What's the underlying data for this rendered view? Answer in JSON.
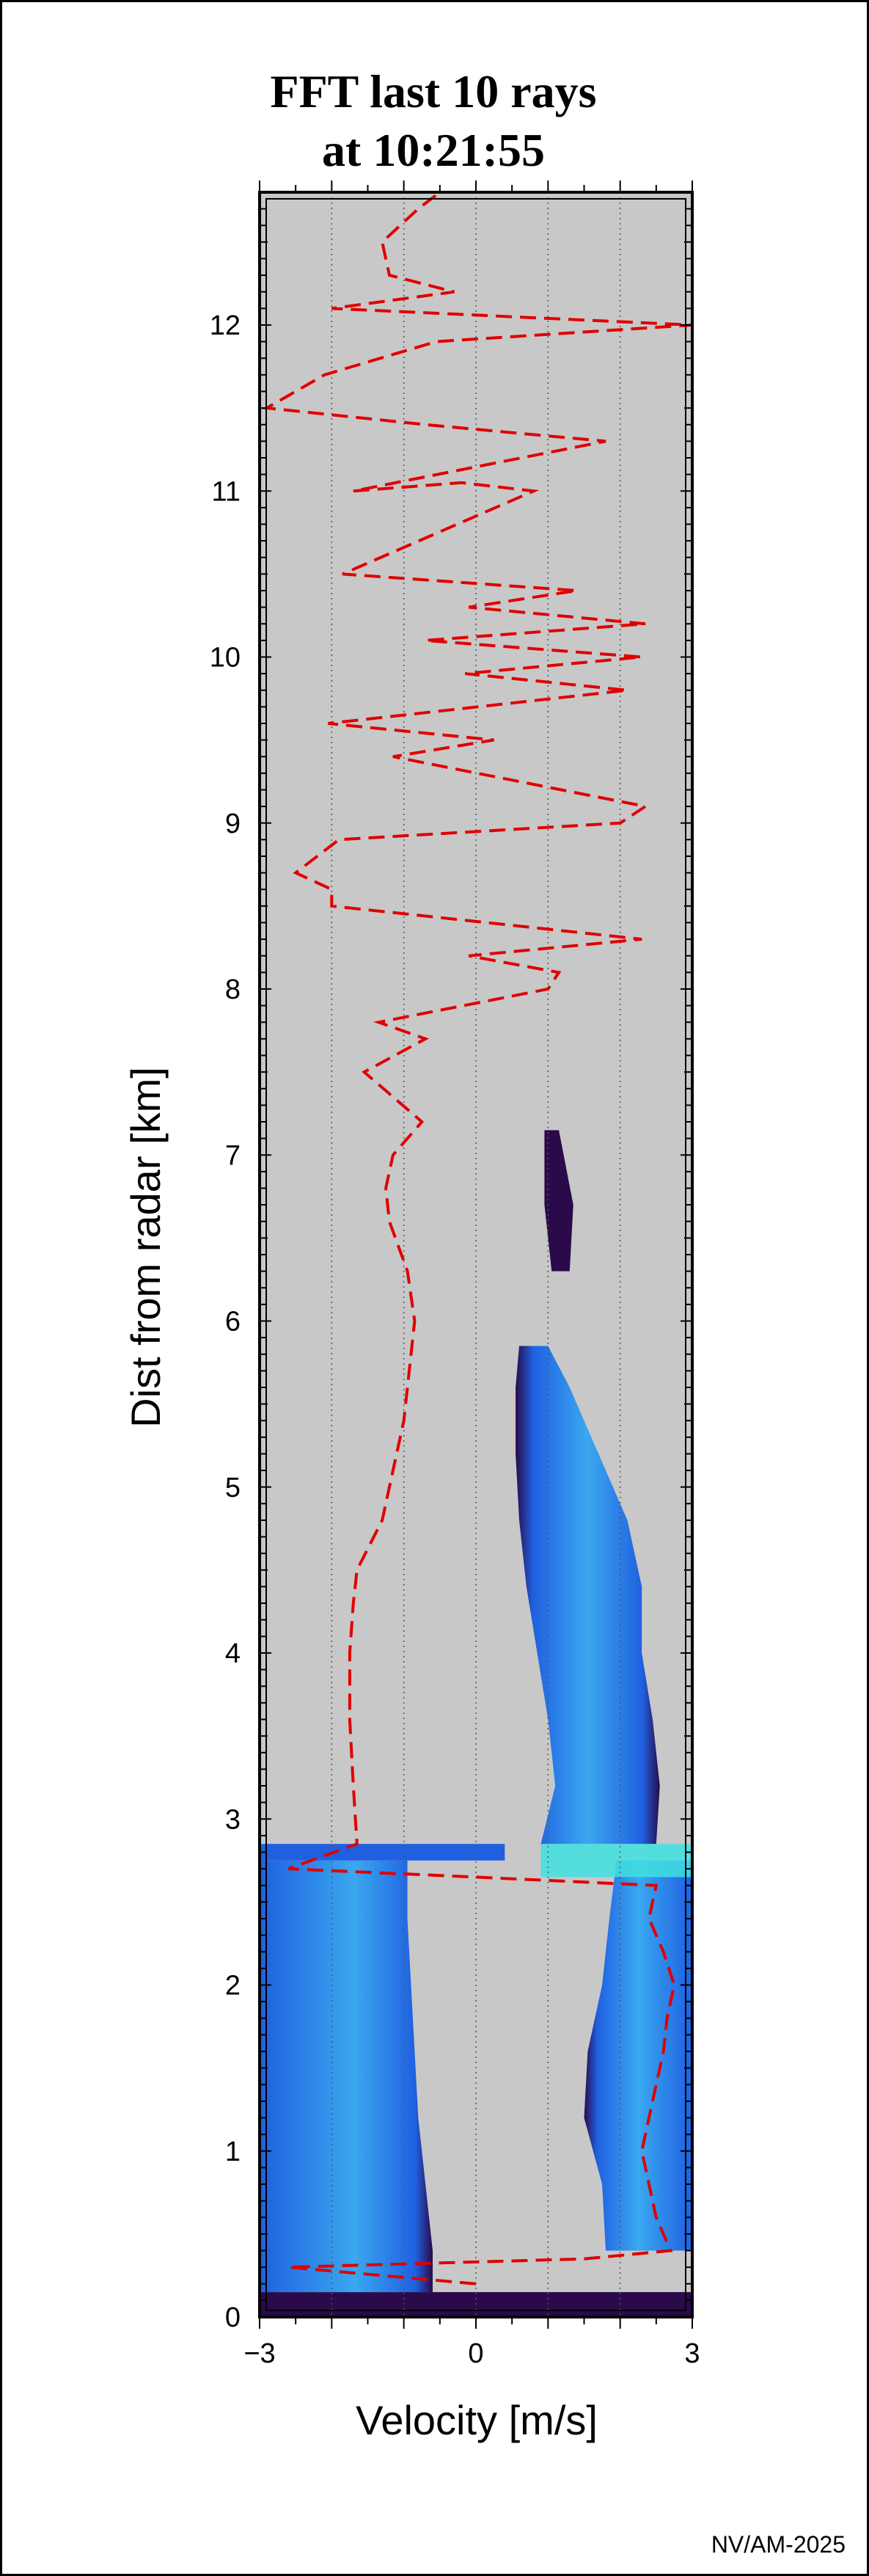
{
  "chart_data": {
    "type": "heatmap",
    "title_lines": [
      "FFT last 10 rays",
      "at 10:21:55"
    ],
    "xlabel": "Velocity [m/s]",
    "ylabel": "Dist from radar [km]",
    "xlim": [
      -3,
      3
    ],
    "ylim": [
      0,
      12.8
    ],
    "xticks": [
      -3,
      0,
      3
    ],
    "xtick_labels": [
      "−3",
      "0",
      "3"
    ],
    "yticks": [
      0,
      1,
      2,
      3,
      4,
      5,
      6,
      7,
      8,
      9,
      10,
      11,
      12
    ],
    "vertical_gridlines": [
      -2,
      -1,
      0,
      1,
      2
    ],
    "colors": {
      "background": "#c8c8c8",
      "spectrum_dark": "#2a0a4a",
      "spectrum_mid": "#2060e0",
      "spectrum_light": "#3aa8f0",
      "spectrum_peak": "#40e0e0",
      "mean_velocity": "#e00000"
    },
    "spectrum_bands": [
      {
        "name": "clutter-near-radar",
        "d0": 0.0,
        "d1": 0.15,
        "v_left": -3.0,
        "v_right": 3.0
      },
      {
        "name": "lower-layer-negative",
        "d0": 0.15,
        "d1": 2.75,
        "profile": [
          [
            0.15,
            -0.6
          ],
          [
            0.4,
            -0.6
          ],
          [
            0.8,
            -0.7
          ],
          [
            1.2,
            -0.8
          ],
          [
            1.6,
            -0.85
          ],
          [
            2.0,
            -0.9
          ],
          [
            2.4,
            -0.95
          ],
          [
            2.75,
            -0.95
          ]
        ],
        "edge": "right"
      },
      {
        "name": "lower-layer-positive",
        "d0": 0.4,
        "d1": 2.75,
        "profile": [
          [
            0.4,
            1.8
          ],
          [
            0.8,
            1.75
          ],
          [
            1.2,
            1.5
          ],
          [
            1.6,
            1.55
          ],
          [
            2.0,
            1.75
          ],
          [
            2.4,
            1.85
          ],
          [
            2.75,
            1.95
          ]
        ],
        "edge": "left"
      },
      {
        "name": "band-at-2.8km",
        "d0": 2.75,
        "d1": 2.85,
        "v_left": -3.0,
        "v_right": 0.4
      },
      {
        "name": "upper-echo",
        "d0": 2.85,
        "d1": 5.85,
        "profile": [
          [
            2.85,
            0.9,
            2.5
          ],
          [
            3.2,
            1.1,
            2.55
          ],
          [
            3.6,
            1.0,
            2.45
          ],
          [
            4.0,
            0.85,
            2.3
          ],
          [
            4.4,
            0.7,
            2.3
          ],
          [
            4.8,
            0.6,
            2.1
          ],
          [
            5.2,
            0.55,
            1.7
          ],
          [
            5.6,
            0.55,
            1.3
          ],
          [
            5.85,
            0.6,
            1.0
          ]
        ]
      },
      {
        "name": "upper-echo-wisps",
        "d0": 6.3,
        "d1": 7.15,
        "profile": [
          [
            6.3,
            1.05,
            1.3
          ],
          [
            6.7,
            0.95,
            1.35
          ],
          [
            7.15,
            0.95,
            1.15
          ]
        ]
      }
    ],
    "mean_velocity_curve": [
      [
        0.2,
        0.0
      ],
      [
        0.3,
        -2.6
      ],
      [
        0.35,
        1.5
      ],
      [
        0.4,
        2.7
      ],
      [
        0.6,
        2.5
      ],
      [
        0.8,
        2.4
      ],
      [
        1.0,
        2.3
      ],
      [
        1.2,
        2.4
      ],
      [
        1.4,
        2.5
      ],
      [
        1.6,
        2.6
      ],
      [
        1.8,
        2.65
      ],
      [
        2.0,
        2.75
      ],
      [
        2.2,
        2.6
      ],
      [
        2.4,
        2.4
      ],
      [
        2.6,
        2.5
      ],
      [
        2.65,
        0.0
      ],
      [
        2.7,
        -2.6
      ],
      [
        2.85,
        -1.65
      ],
      [
        3.2,
        -1.7
      ],
      [
        3.6,
        -1.75
      ],
      [
        4.0,
        -1.75
      ],
      [
        4.3,
        -1.7
      ],
      [
        4.5,
        -1.65
      ],
      [
        4.8,
        -1.3
      ],
      [
        5.0,
        -1.2
      ],
      [
        5.4,
        -1.0
      ],
      [
        5.8,
        -0.9
      ],
      [
        6.0,
        -0.85
      ],
      [
        6.3,
        -0.95
      ],
      [
        6.6,
        -1.2
      ],
      [
        6.8,
        -1.25
      ],
      [
        7.0,
        -1.15
      ],
      [
        7.2,
        -0.75
      ],
      [
        7.5,
        -1.55
      ],
      [
        7.7,
        -0.7
      ],
      [
        7.8,
        -1.35
      ],
      [
        8.0,
        1.0
      ],
      [
        8.1,
        1.15
      ],
      [
        8.2,
        -0.1
      ],
      [
        8.3,
        2.3
      ],
      [
        8.5,
        -2.0
      ],
      [
        8.6,
        -2.0
      ],
      [
        8.7,
        -2.5
      ],
      [
        8.9,
        -1.9
      ],
      [
        9.0,
        2.0
      ],
      [
        9.1,
        2.35
      ],
      [
        9.4,
        -1.15
      ],
      [
        9.5,
        0.25
      ],
      [
        9.6,
        -2.05
      ],
      [
        9.8,
        2.1
      ],
      [
        9.9,
        -0.15
      ],
      [
        10.0,
        2.3
      ],
      [
        10.1,
        -0.7
      ],
      [
        10.2,
        2.35
      ],
      [
        10.3,
        -0.1
      ],
      [
        10.4,
        1.4
      ],
      [
        10.5,
        -1.85
      ],
      [
        11.0,
        0.8
      ],
      [
        11.05,
        -0.2
      ],
      [
        11.0,
        -1.7
      ],
      [
        11.3,
        1.8
      ],
      [
        11.4,
        -0.7
      ],
      [
        11.5,
        -2.9
      ],
      [
        11.7,
        -2.1
      ],
      [
        11.9,
        -0.55
      ],
      [
        12.0,
        3.0
      ],
      [
        12.1,
        -2.0
      ],
      [
        12.2,
        -0.3
      ],
      [
        12.3,
        -1.2
      ],
      [
        12.5,
        -1.3
      ],
      [
        12.7,
        -0.8
      ],
      [
        12.8,
        -0.5
      ]
    ]
  },
  "footer": {
    "credit": "NV/AM-2025"
  }
}
